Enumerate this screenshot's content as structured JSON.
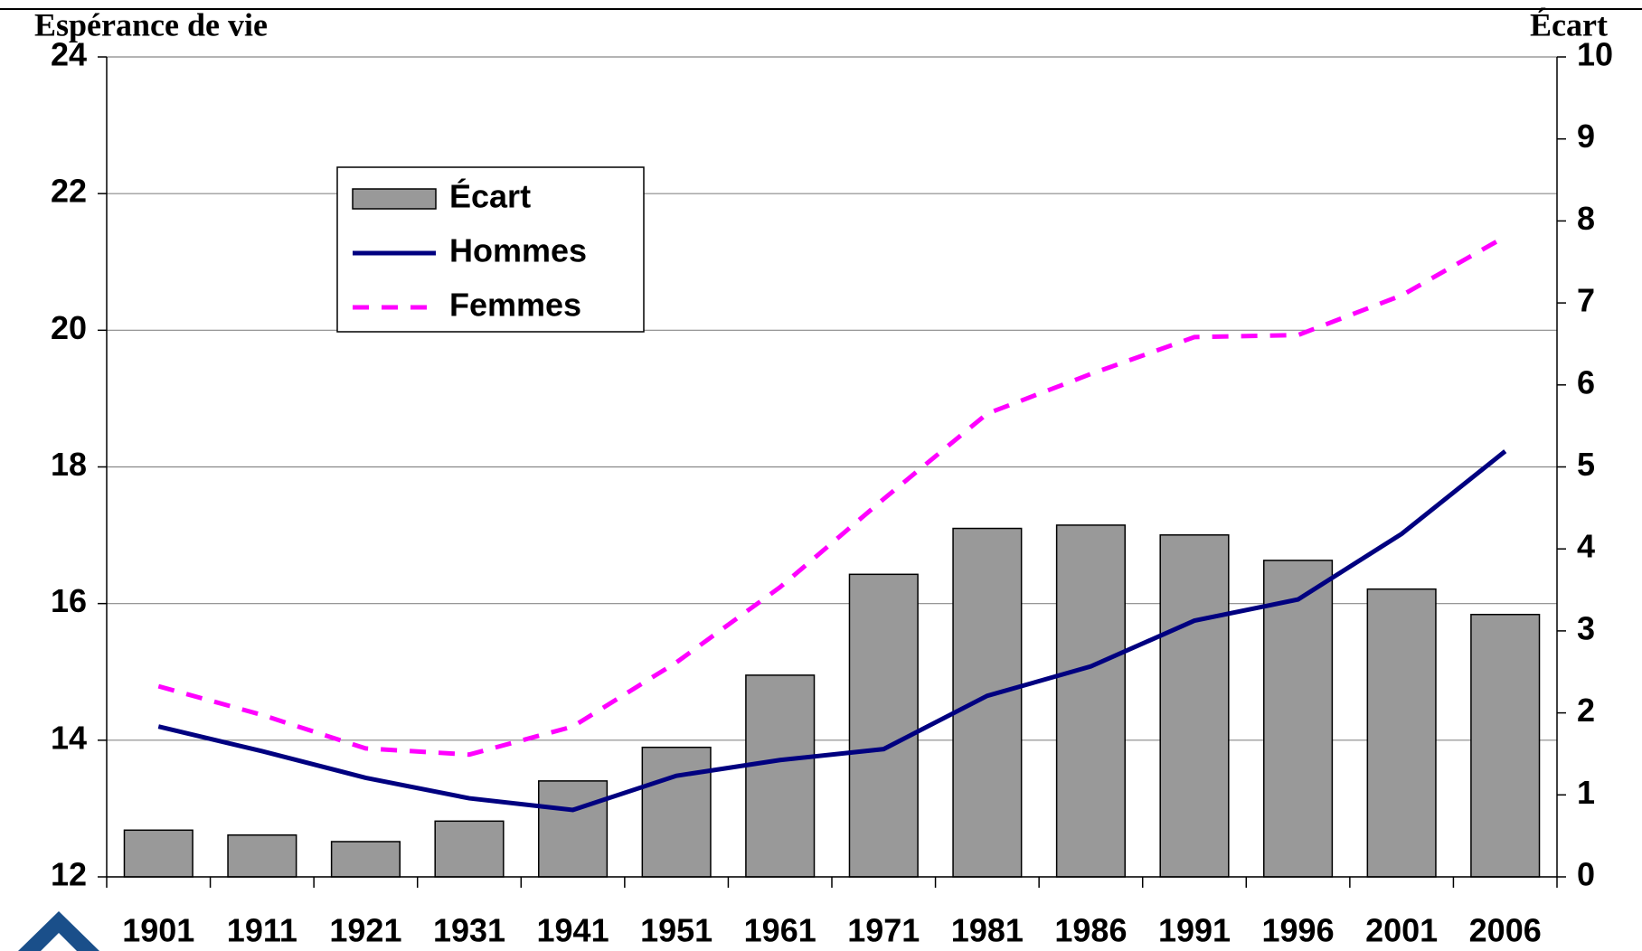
{
  "chart_data": {
    "type": "bar-line",
    "y_label": "Espérance de vie",
    "y2_label": "Écart",
    "categories": [
      "1901",
      "1911",
      "1921",
      "1931",
      "1941",
      "1951",
      "1961",
      "1971",
      "1981",
      "1986",
      "1991",
      "1996",
      "2001",
      "2006"
    ],
    "series": [
      {
        "name": "Écart",
        "type": "bar",
        "axis": "y2",
        "color": "#999999",
        "values": [
          0.57,
          0.51,
          0.43,
          0.68,
          1.17,
          1.58,
          2.46,
          3.69,
          4.25,
          4.29,
          4.17,
          3.86,
          3.51,
          3.2
        ]
      },
      {
        "name": "Hommes",
        "type": "line",
        "axis": "y",
        "color": "#000080",
        "values": [
          14.2,
          13.84,
          13.45,
          13.15,
          12.98,
          13.48,
          13.71,
          13.87,
          14.65,
          15.08,
          15.75,
          16.06,
          17.02,
          18.23
        ]
      },
      {
        "name": "Femmes",
        "type": "line",
        "dashed": true,
        "axis": "y",
        "color": "#ff00ff",
        "values": [
          14.79,
          14.37,
          13.88,
          13.79,
          14.2,
          15.14,
          16.24,
          17.53,
          18.78,
          19.36,
          19.9,
          19.93,
          20.51,
          21.37
        ]
      }
    ],
    "ylim": [
      12,
      24
    ],
    "yticks": [
      12,
      14,
      16,
      18,
      20,
      22,
      24
    ],
    "y2lim": [
      0,
      10
    ],
    "y2ticks": [
      0,
      1,
      2,
      3,
      4,
      5,
      6,
      7,
      8,
      9,
      10
    ],
    "grid": true,
    "legend": "upper left"
  }
}
